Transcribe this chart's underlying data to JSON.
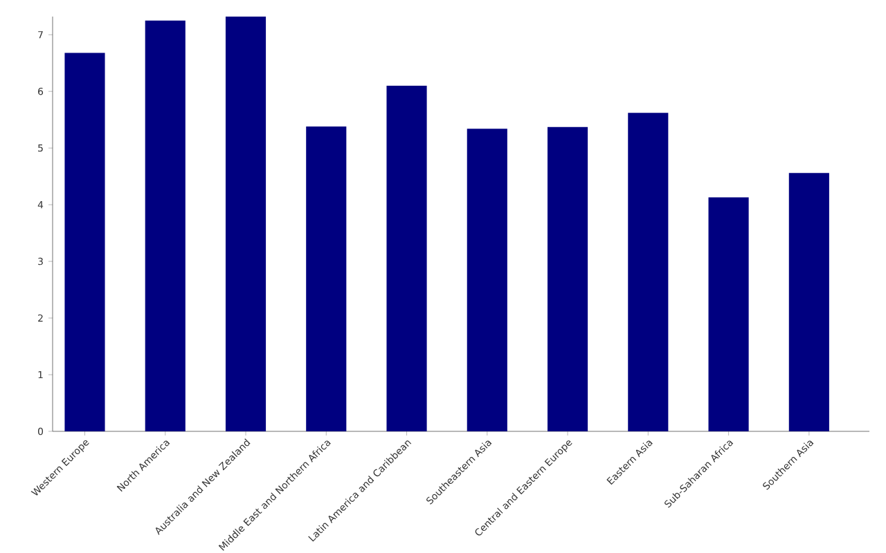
{
  "chart_data": {
    "type": "bar",
    "categories": [
      "Western Europe",
      "North America",
      "Australia and New Zealand",
      "Middle East and Northern Africa",
      "Latin America and Caribbean",
      "Southeastern Asia",
      "Central and Eastern Europe",
      "Eastern Asia",
      "Sub-Saharan Africa",
      "Southern Asia"
    ],
    "values": [
      6.68,
      7.25,
      7.32,
      5.38,
      6.1,
      5.34,
      5.37,
      5.62,
      4.13,
      4.56
    ],
    "color": "#000080",
    "ylim": [
      0,
      7.32
    ],
    "yticks": [
      0,
      1,
      2,
      3,
      4,
      5,
      6,
      7
    ],
    "grid": false
  }
}
